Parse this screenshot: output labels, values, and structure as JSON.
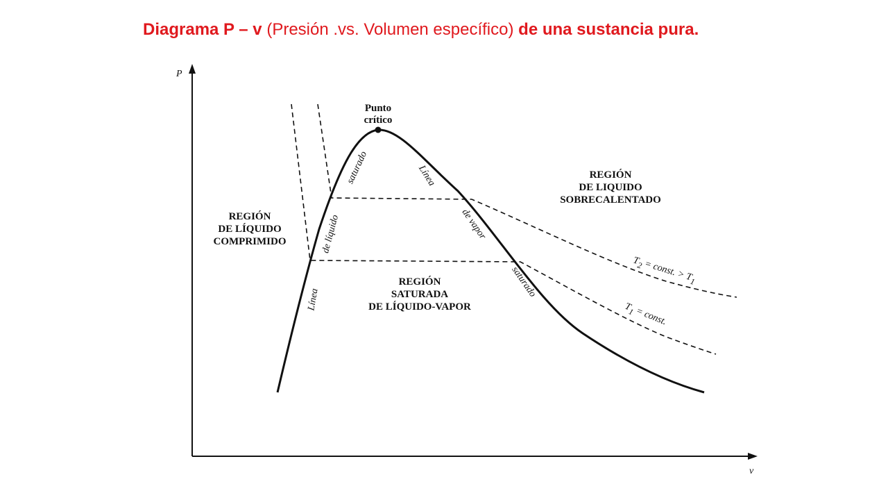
{
  "title": {
    "part1": "Diagrama P – v",
    "part2": " (Presión .vs. Volumen específico) ",
    "part3": "de una sustancia pura."
  },
  "axes": {
    "y_label": "P",
    "x_label": "v"
  },
  "critical_point": {
    "line1": "Punto",
    "line2": "crítico"
  },
  "regions": {
    "compressed": [
      "REGIÓN",
      "DE LÍQUIDO",
      "COMPRIMIDO"
    ],
    "saturated": [
      "REGIÓN",
      "SATURADA",
      "DE LÍQUIDO-VAPOR"
    ],
    "superheated": [
      "REGIÓN",
      "DE LIQUIDO",
      "SOBRECALENTADO"
    ]
  },
  "liquid_line": [
    "Línea",
    "de líquido",
    "saturado"
  ],
  "vapor_line": [
    "Línea",
    "de vapor",
    "saturado"
  ],
  "isotherms": {
    "t2": [
      "T",
      "2",
      " = const. > T",
      "1"
    ],
    "t1": [
      "T",
      "1",
      " = const."
    ]
  }
}
